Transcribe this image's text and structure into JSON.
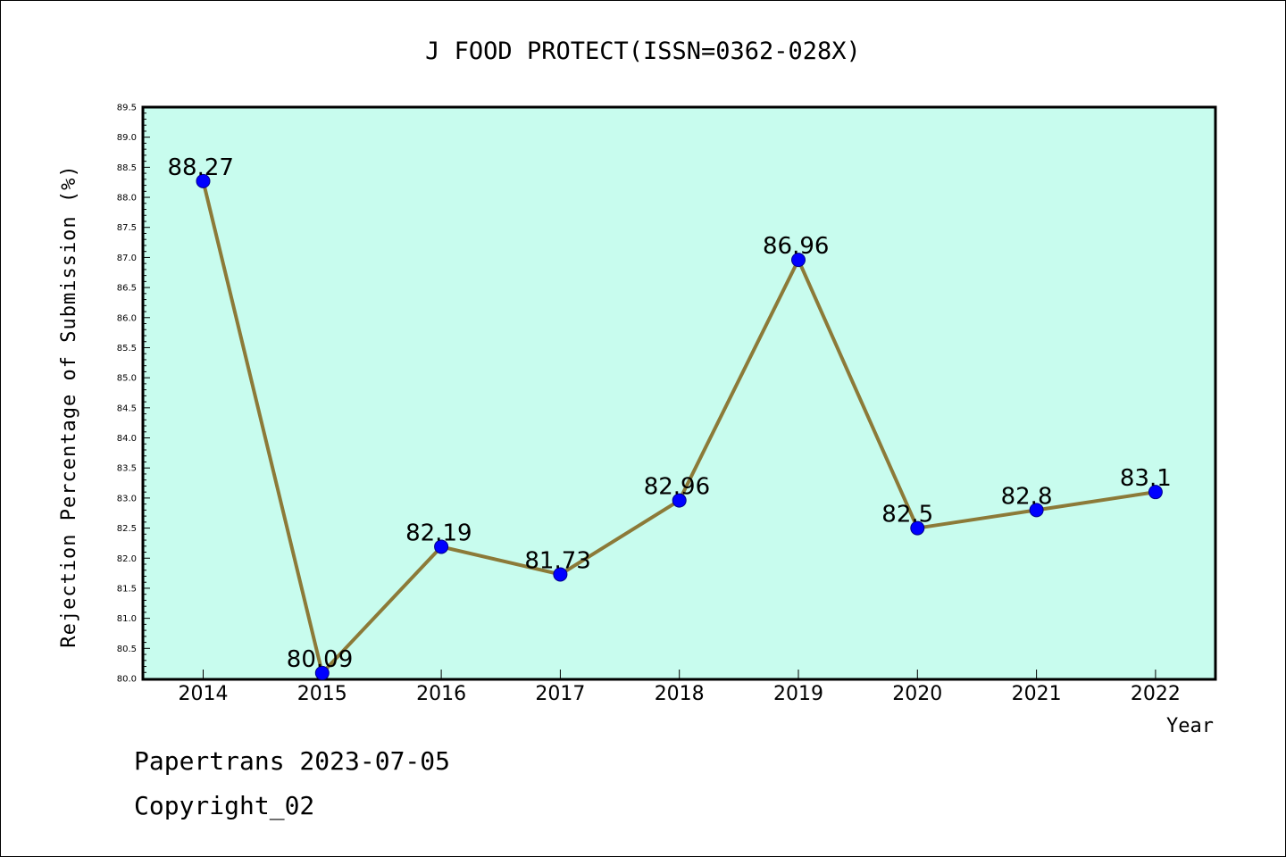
{
  "chart_data": {
    "type": "line",
    "title": "J FOOD PROTECT(ISSN=0362-028X)",
    "xlabel": "Year",
    "ylabel": "Rejection Percentage of Submission (%)",
    "categories": [
      "2014",
      "2015",
      "2016",
      "2017",
      "2018",
      "2019",
      "2020",
      "2021",
      "2022"
    ],
    "values": [
      88.27,
      80.09,
      82.19,
      81.73,
      82.96,
      86.96,
      82.5,
      82.8,
      83.1
    ],
    "data_labels": [
      "88.27",
      "80.09",
      "82.19",
      "81.73",
      "82.96",
      "86.96",
      "82.5",
      "82.8",
      "83.1"
    ],
    "ylim": [
      80.0,
      89.5
    ],
    "yticks": [
      "80.0",
      "80.5",
      "81.0",
      "81.5",
      "82.0",
      "82.5",
      "83.0",
      "83.5",
      "84.0",
      "84.5",
      "85.0",
      "85.5",
      "86.0",
      "86.5",
      "87.0",
      "87.5",
      "88.0",
      "88.5",
      "89.0",
      "89.5"
    ],
    "grid": false,
    "colors": {
      "plot_background": "#c8fcee",
      "line": "#8c7a38",
      "marker": "#0000ff"
    }
  },
  "footer": {
    "line1": "Papertrans 2023-07-05",
    "line2": "Copyright_02"
  }
}
